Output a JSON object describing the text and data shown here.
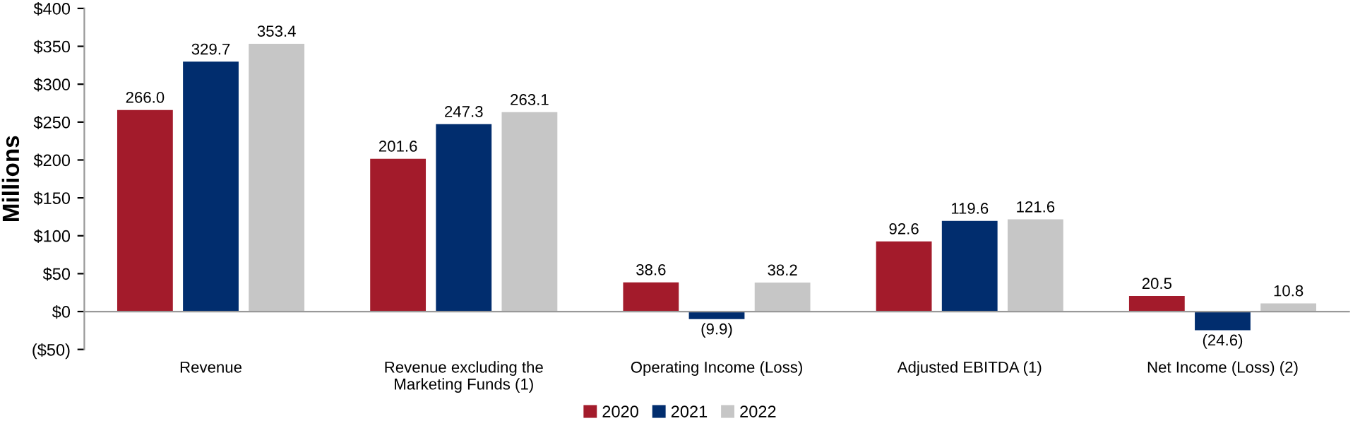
{
  "chart_data": {
    "type": "bar",
    "ylabel": "Millions",
    "categories": [
      "Revenue",
      "Revenue excluding the\nMarketing Funds (1)",
      "Operating Income (Loss)",
      "Adjusted EBITDA (1)",
      "Net Income (Loss) (2)"
    ],
    "series": [
      {
        "name": "2020",
        "color": "#a31b2b",
        "values": [
          266.0,
          201.6,
          38.6,
          92.6,
          20.5
        ],
        "value_labels": [
          "266.0",
          "201.6",
          "38.6",
          "92.6",
          "20.5"
        ]
      },
      {
        "name": "2021",
        "color": "#012d6e",
        "values": [
          329.7,
          247.3,
          -9.9,
          119.6,
          -24.6
        ],
        "value_labels": [
          "329.7",
          "247.3",
          "(9.9)",
          "119.6",
          "(24.6)"
        ]
      },
      {
        "name": "2022",
        "color": "#c6c6c6",
        "values": [
          353.4,
          263.1,
          38.2,
          121.6,
          10.8
        ],
        "value_labels": [
          "353.4",
          "263.1",
          "38.2",
          "121.6",
          "10.8"
        ]
      }
    ],
    "ylim": [
      -50,
      400
    ],
    "yticks": [
      {
        "value": -50,
        "label": "($50)"
      },
      {
        "value": 0,
        "label": "$0"
      },
      {
        "value": 50,
        "label": "$50"
      },
      {
        "value": 100,
        "label": "$100"
      },
      {
        "value": 150,
        "label": "$150"
      },
      {
        "value": 200,
        "label": "$200"
      },
      {
        "value": 250,
        "label": "$250"
      },
      {
        "value": 300,
        "label": "$300"
      },
      {
        "value": 350,
        "label": "$350"
      },
      {
        "value": 400,
        "label": "$400"
      }
    ],
    "legend": "bottom"
  }
}
